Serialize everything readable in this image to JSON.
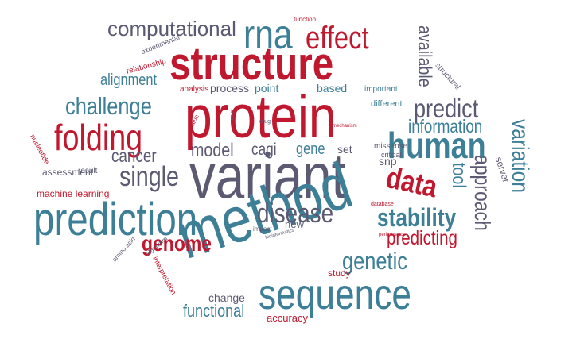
{
  "words": {
    "protein": "protein",
    "variant": "variant",
    "structure": "structure",
    "method": "method",
    "prediction": "prediction",
    "sequence": "sequence",
    "human": "human",
    "rna": "rna",
    "effect": "effect",
    "folding": "folding",
    "predict": "predict",
    "single": "single",
    "data": "data",
    "disease": "disease",
    "challenge": "challenge",
    "computational": "computational",
    "stability": "stability",
    "genetic": "genetic",
    "genome": "genome",
    "variation": "variation",
    "information": "information",
    "approach": "approach",
    "tool": "tool",
    "available": "available",
    "predicting": "predicting",
    "model": "model",
    "cancer": "cancer",
    "alignment": "alignment",
    "cagi": "cagi",
    "gene": "gene",
    "functional": "functional",
    "change": "change",
    "accuracy": "accuracy",
    "study": "study",
    "snp": "snp",
    "set": "set",
    "process": "process",
    "point": "point",
    "based": "based",
    "new": "new",
    "server": "server",
    "assessment": "assessment",
    "machine_learning": "machine learning",
    "different": "different",
    "important": "important",
    "missense": "missense",
    "critical": "critical",
    "analysis": "analysis",
    "relationship": "relationship",
    "experimental": "experimental",
    "structural": "structural",
    "nucleotide": "nucleotide",
    "result": "result",
    "interpretation": "interpretation",
    "algorithm": "algorithm",
    "amino_acid": "amino acid",
    "impact": "impact",
    "function": "function",
    "value": "value",
    "drug": "drug",
    "database": "database",
    "performance": "performance",
    "bioinformatics": "bioinformatics",
    "show": "show",
    "mechanism": "mechanism"
  },
  "colors": {
    "red": "#c0182e",
    "teal": "#3d7f97",
    "slate": "#5b5a72"
  }
}
